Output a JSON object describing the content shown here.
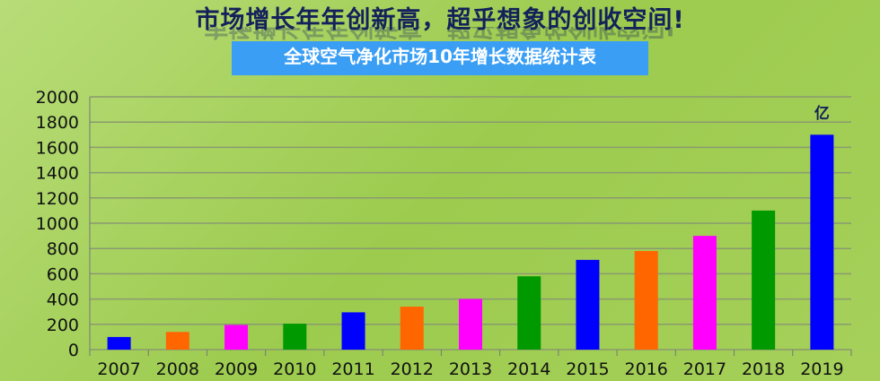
{
  "header": {
    "title": "市场增长年年创新高，超乎想象的创收空间!",
    "subtitle": "全球空气净化市场10年增长数据统计表"
  },
  "chart_data": {
    "type": "bar",
    "title": "全球空气净化市场10年增长数据统计表",
    "unit_label": "亿",
    "categories": [
      "2007",
      "2008",
      "2009",
      "2010",
      "2011",
      "2012",
      "2013",
      "2014",
      "2015",
      "2016",
      "2017",
      "2018",
      "2019"
    ],
    "values": [
      100,
      140,
      195,
      205,
      295,
      340,
      400,
      580,
      710,
      780,
      900,
      1100,
      1700
    ],
    "colors": [
      "#0000ff",
      "#ff6600",
      "#ff00ff",
      "#009900",
      "#0000ff",
      "#ff6600",
      "#ff00ff",
      "#009900",
      "#0000ff",
      "#ff6600",
      "#ff00ff",
      "#009900",
      "#0000ff"
    ],
    "ylim": [
      0,
      2000
    ],
    "yticks": [
      "0",
      "200",
      "400",
      "600",
      "800",
      "1000",
      "1200",
      "1400",
      "1600",
      "1800",
      "2000"
    ],
    "grid": true
  }
}
